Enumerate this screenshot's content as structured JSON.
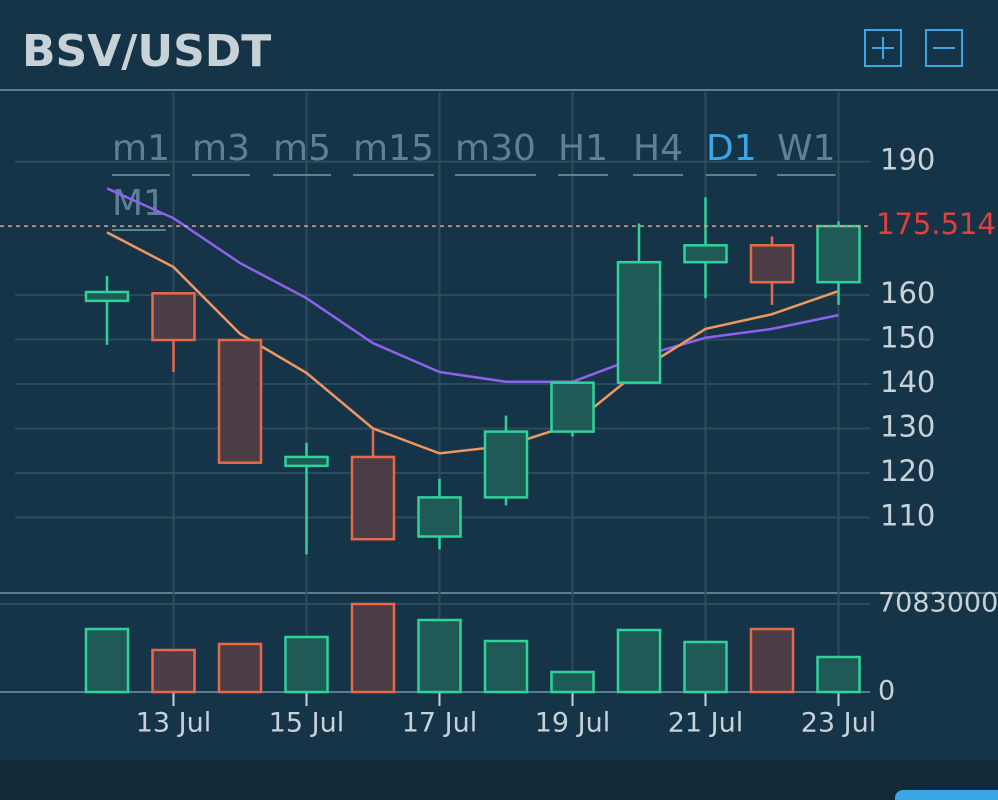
{
  "chart_data": {
    "type": "candlestick",
    "title": "BSV/USDT",
    "intervals": [
      "m1",
      "m3",
      "m5",
      "m15",
      "m30",
      "H1",
      "H4",
      "D1",
      "W1",
      "M1"
    ],
    "active_interval": "D1",
    "categories": [
      null,
      "13 Jul",
      null,
      "15 Jul",
      null,
      "17 Jul",
      null,
      "19 Jul",
      null,
      "21 Jul",
      null,
      "23 Jul"
    ],
    "open": [
      158.7,
      160.4,
      149.9,
      121.6,
      123.6,
      105.7,
      114.5,
      129.3,
      140.3,
      167.4,
      171.2,
      162.9
    ],
    "high": [
      164.3,
      160.4,
      149.9,
      126.8,
      129.7,
      118.7,
      132.9,
      140.3,
      176.1,
      182.0,
      173.2,
      176.6
    ],
    "low": [
      148.8,
      142.7,
      122.3,
      101.7,
      105.1,
      102.8,
      112.7,
      128.2,
      140.3,
      159.3,
      157.8,
      157.8
    ],
    "close": [
      160.7,
      149.9,
      122.3,
      123.6,
      105.1,
      114.5,
      129.3,
      140.3,
      167.4,
      171.2,
      162.9,
      175.514
    ],
    "up_color": "#2ed39a",
    "down_color": "#e8694a",
    "series": [
      {
        "color": "#8e62ee",
        "values": [
          184.0,
          177.3,
          167.2,
          159.3,
          149.2,
          142.7,
          140.5,
          140.5,
          146.1,
          150.4,
          152.4,
          155.5
        ]
      },
      {
        "color": "#ef9760",
        "values": [
          174.1,
          166.3,
          151.3,
          142.5,
          130.0,
          124.4,
          126.1,
          130.9,
          143.0,
          152.4,
          155.7,
          160.9
        ]
      }
    ],
    "last_price": 175.514,
    "last_price_color": "#e0403a",
    "ylim": [
      93,
      205
    ],
    "yticks": [
      110,
      120,
      130,
      140,
      150,
      160,
      190
    ],
    "grid": true,
    "volume": {
      "values": [
        5070800,
        3380500,
        3863500,
        4426900,
        7083000,
        5795200,
        4104900,
        1609800,
        4990300,
        4024500,
        5070800,
        2817100
      ],
      "ylim": [
        0,
        7083000
      ],
      "yticks": [
        0,
        7083000
      ]
    }
  }
}
